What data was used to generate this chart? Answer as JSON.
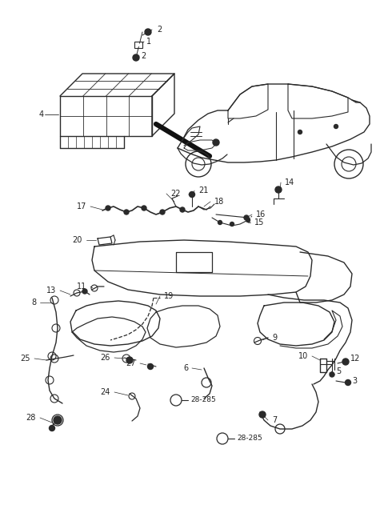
{
  "bg_color": "#ffffff",
  "line_color": "#2a2a2a",
  "text_color": "#222222",
  "fig_width": 4.8,
  "fig_height": 6.56,
  "dpi": 100,
  "pw": 480,
  "ph": 656
}
